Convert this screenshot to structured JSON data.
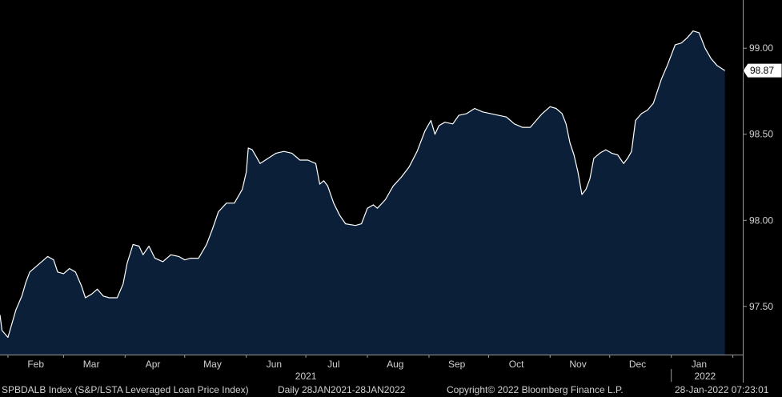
{
  "chart_data": {
    "type": "area",
    "series": [
      {
        "values": [
          [
            "2021-01-28",
            97.45
          ],
          [
            "2021-01-29",
            97.36
          ],
          [
            "2021-02-01",
            97.32
          ],
          [
            "2021-02-03",
            97.4
          ],
          [
            "2021-02-05",
            97.48
          ],
          [
            "2021-02-08",
            97.56
          ],
          [
            "2021-02-10",
            97.64
          ],
          [
            "2021-02-12",
            97.7
          ],
          [
            "2021-02-15",
            97.73
          ],
          [
            "2021-02-18",
            97.76
          ],
          [
            "2021-02-21",
            97.79
          ],
          [
            "2021-02-24",
            97.77
          ],
          [
            "2021-02-26",
            97.7
          ],
          [
            "2021-03-01",
            97.69
          ],
          [
            "2021-03-04",
            97.72
          ],
          [
            "2021-03-07",
            97.7
          ],
          [
            "2021-03-10",
            97.62
          ],
          [
            "2021-03-12",
            97.55
          ],
          [
            "2021-03-15",
            97.57
          ],
          [
            "2021-03-18",
            97.6
          ],
          [
            "2021-03-21",
            97.56
          ],
          [
            "2021-03-24",
            97.55
          ],
          [
            "2021-03-28",
            97.55
          ],
          [
            "2021-03-31",
            97.63
          ],
          [
            "2021-04-02",
            97.75
          ],
          [
            "2021-04-05",
            97.86
          ],
          [
            "2021-04-08",
            97.85
          ],
          [
            "2021-04-10",
            97.8
          ],
          [
            "2021-04-13",
            97.85
          ],
          [
            "2021-04-16",
            97.78
          ],
          [
            "2021-04-20",
            97.76
          ],
          [
            "2021-04-24",
            97.8
          ],
          [
            "2021-04-28",
            97.79
          ],
          [
            "2021-05-01",
            97.77
          ],
          [
            "2021-05-04",
            97.78
          ],
          [
            "2021-05-08",
            97.78
          ],
          [
            "2021-05-12",
            97.86
          ],
          [
            "2021-05-15",
            97.95
          ],
          [
            "2021-05-18",
            98.05
          ],
          [
            "2021-05-22",
            98.1
          ],
          [
            "2021-05-26",
            98.1
          ],
          [
            "2021-05-30",
            98.18
          ],
          [
            "2021-06-01",
            98.28
          ],
          [
            "2021-06-02",
            98.42
          ],
          [
            "2021-06-04",
            98.41
          ],
          [
            "2021-06-06",
            98.37
          ],
          [
            "2021-06-08",
            98.33
          ],
          [
            "2021-06-12",
            98.36
          ],
          [
            "2021-06-16",
            98.39
          ],
          [
            "2021-06-20",
            98.4
          ],
          [
            "2021-06-24",
            98.39
          ],
          [
            "2021-06-28",
            98.35
          ],
          [
            "2021-07-02",
            98.35
          ],
          [
            "2021-07-06",
            98.33
          ],
          [
            "2021-07-08",
            98.21
          ],
          [
            "2021-07-10",
            98.23
          ],
          [
            "2021-07-12",
            98.2
          ],
          [
            "2021-07-15",
            98.1
          ],
          [
            "2021-07-18",
            98.03
          ],
          [
            "2021-07-21",
            97.98
          ],
          [
            "2021-07-26",
            97.97
          ],
          [
            "2021-07-29",
            97.98
          ],
          [
            "2021-08-01",
            98.07
          ],
          [
            "2021-08-04",
            98.09
          ],
          [
            "2021-08-06",
            98.07
          ],
          [
            "2021-08-10",
            98.12
          ],
          [
            "2021-08-14",
            98.2
          ],
          [
            "2021-08-18",
            98.25
          ],
          [
            "2021-08-22",
            98.31
          ],
          [
            "2021-08-26",
            98.4
          ],
          [
            "2021-08-30",
            98.52
          ],
          [
            "2021-09-02",
            98.58
          ],
          [
            "2021-09-04",
            98.5
          ],
          [
            "2021-09-06",
            98.55
          ],
          [
            "2021-09-09",
            98.57
          ],
          [
            "2021-09-13",
            98.56
          ],
          [
            "2021-09-16",
            98.61
          ],
          [
            "2021-09-20",
            98.62
          ],
          [
            "2021-09-24",
            98.65
          ],
          [
            "2021-09-28",
            98.63
          ],
          [
            "2021-10-02",
            98.62
          ],
          [
            "2021-10-06",
            98.61
          ],
          [
            "2021-10-10",
            98.6
          ],
          [
            "2021-10-14",
            98.56
          ],
          [
            "2021-10-18",
            98.54
          ],
          [
            "2021-10-22",
            98.54
          ],
          [
            "2021-10-25",
            98.58
          ],
          [
            "2021-10-28",
            98.62
          ],
          [
            "2021-11-01",
            98.66
          ],
          [
            "2021-11-04",
            98.65
          ],
          [
            "2021-11-07",
            98.62
          ],
          [
            "2021-11-09",
            98.56
          ],
          [
            "2021-11-11",
            98.45
          ],
          [
            "2021-11-13",
            98.38
          ],
          [
            "2021-11-15",
            98.28
          ],
          [
            "2021-11-17",
            98.15
          ],
          [
            "2021-11-19",
            98.18
          ],
          [
            "2021-11-21",
            98.24
          ],
          [
            "2021-11-23",
            98.36
          ],
          [
            "2021-11-26",
            98.39
          ],
          [
            "2021-11-29",
            98.41
          ],
          [
            "2021-12-02",
            98.39
          ],
          [
            "2021-12-05",
            98.38
          ],
          [
            "2021-12-08",
            98.33
          ],
          [
            "2021-12-10",
            98.36
          ],
          [
            "2021-12-12",
            98.4
          ],
          [
            "2021-12-14",
            98.58
          ],
          [
            "2021-12-17",
            98.62
          ],
          [
            "2021-12-20",
            98.64
          ],
          [
            "2021-12-23",
            98.68
          ],
          [
            "2021-12-27",
            98.82
          ],
          [
            "2021-12-30",
            98.9
          ],
          [
            "2022-01-03",
            99.02
          ],
          [
            "2022-01-06",
            99.03
          ],
          [
            "2022-01-09",
            99.06
          ],
          [
            "2022-01-12",
            99.1
          ],
          [
            "2022-01-15",
            99.09
          ],
          [
            "2022-01-18",
            99.0
          ],
          [
            "2022-01-21",
            98.94
          ],
          [
            "2022-01-24",
            98.9
          ],
          [
            "2022-01-28",
            98.87
          ]
        ]
      }
    ],
    "x_tick_labels": [
      "Feb",
      "Mar",
      "Apr",
      "May",
      "Jun",
      "Jul",
      "Aug",
      "Sep",
      "Oct",
      "Nov",
      "Dec",
      "Jan"
    ],
    "x_year_labels": [
      "2021",
      "2022"
    ],
    "y_ticks": [
      97.5,
      98.0,
      98.5,
      99.0
    ],
    "y_tick_labels": [
      "97.50",
      "98.00",
      "98.50",
      "99.00"
    ],
    "ylim": [
      97.22,
      99.28
    ],
    "xlim": [
      "2021-01-28",
      "2022-02-06"
    ],
    "last_value_label": "98.87",
    "grid": false,
    "colors": {
      "line": "#ffffff",
      "fill": "#0b2038",
      "background": "#000000",
      "axis": "#9a9a9a"
    }
  },
  "footer": {
    "index_description": "SPBDALB Index (S&P/LSTA Leveraged Loan Price Index)",
    "frequency_range": "Daily 28JAN2021-28JAN2022",
    "copyright": "Copyright© 2022 Bloomberg Finance L.P.",
    "timestamp": "28-Jan-2022 07:23:01"
  }
}
